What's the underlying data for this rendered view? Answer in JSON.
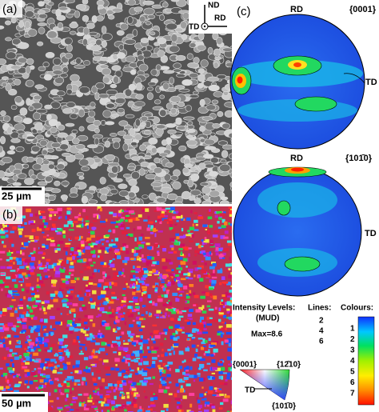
{
  "panel_a": {
    "label": "(a)",
    "scale_bar": "25 µm",
    "axes": [
      "ND",
      "RD",
      "TD"
    ]
  },
  "panel_b": {
    "label": "(b)",
    "scale_bar": "50 µm"
  },
  "panel_c": {
    "label": "(c)",
    "pole_figures": [
      {
        "title": "{0001}",
        "top": "RD",
        "right": "TD"
      },
      {
        "title": "{101̄0}",
        "top": "RD",
        "right": "TD"
      }
    ],
    "legend": {
      "intensity": "Intensity Levels:",
      "unit": "(MUD)",
      "max": "Max=8.6",
      "lines_title": "Lines:",
      "lines": [
        2,
        4,
        6
      ],
      "colours_title": "Colours:",
      "colours": [
        1,
        2,
        3,
        4,
        5,
        6,
        7
      ]
    },
    "ipf": {
      "corner_top_left": "{0001}",
      "corner_top_right": "{12̄10}",
      "corner_bottom": "{101̄0}",
      "axis": "TD"
    }
  }
}
